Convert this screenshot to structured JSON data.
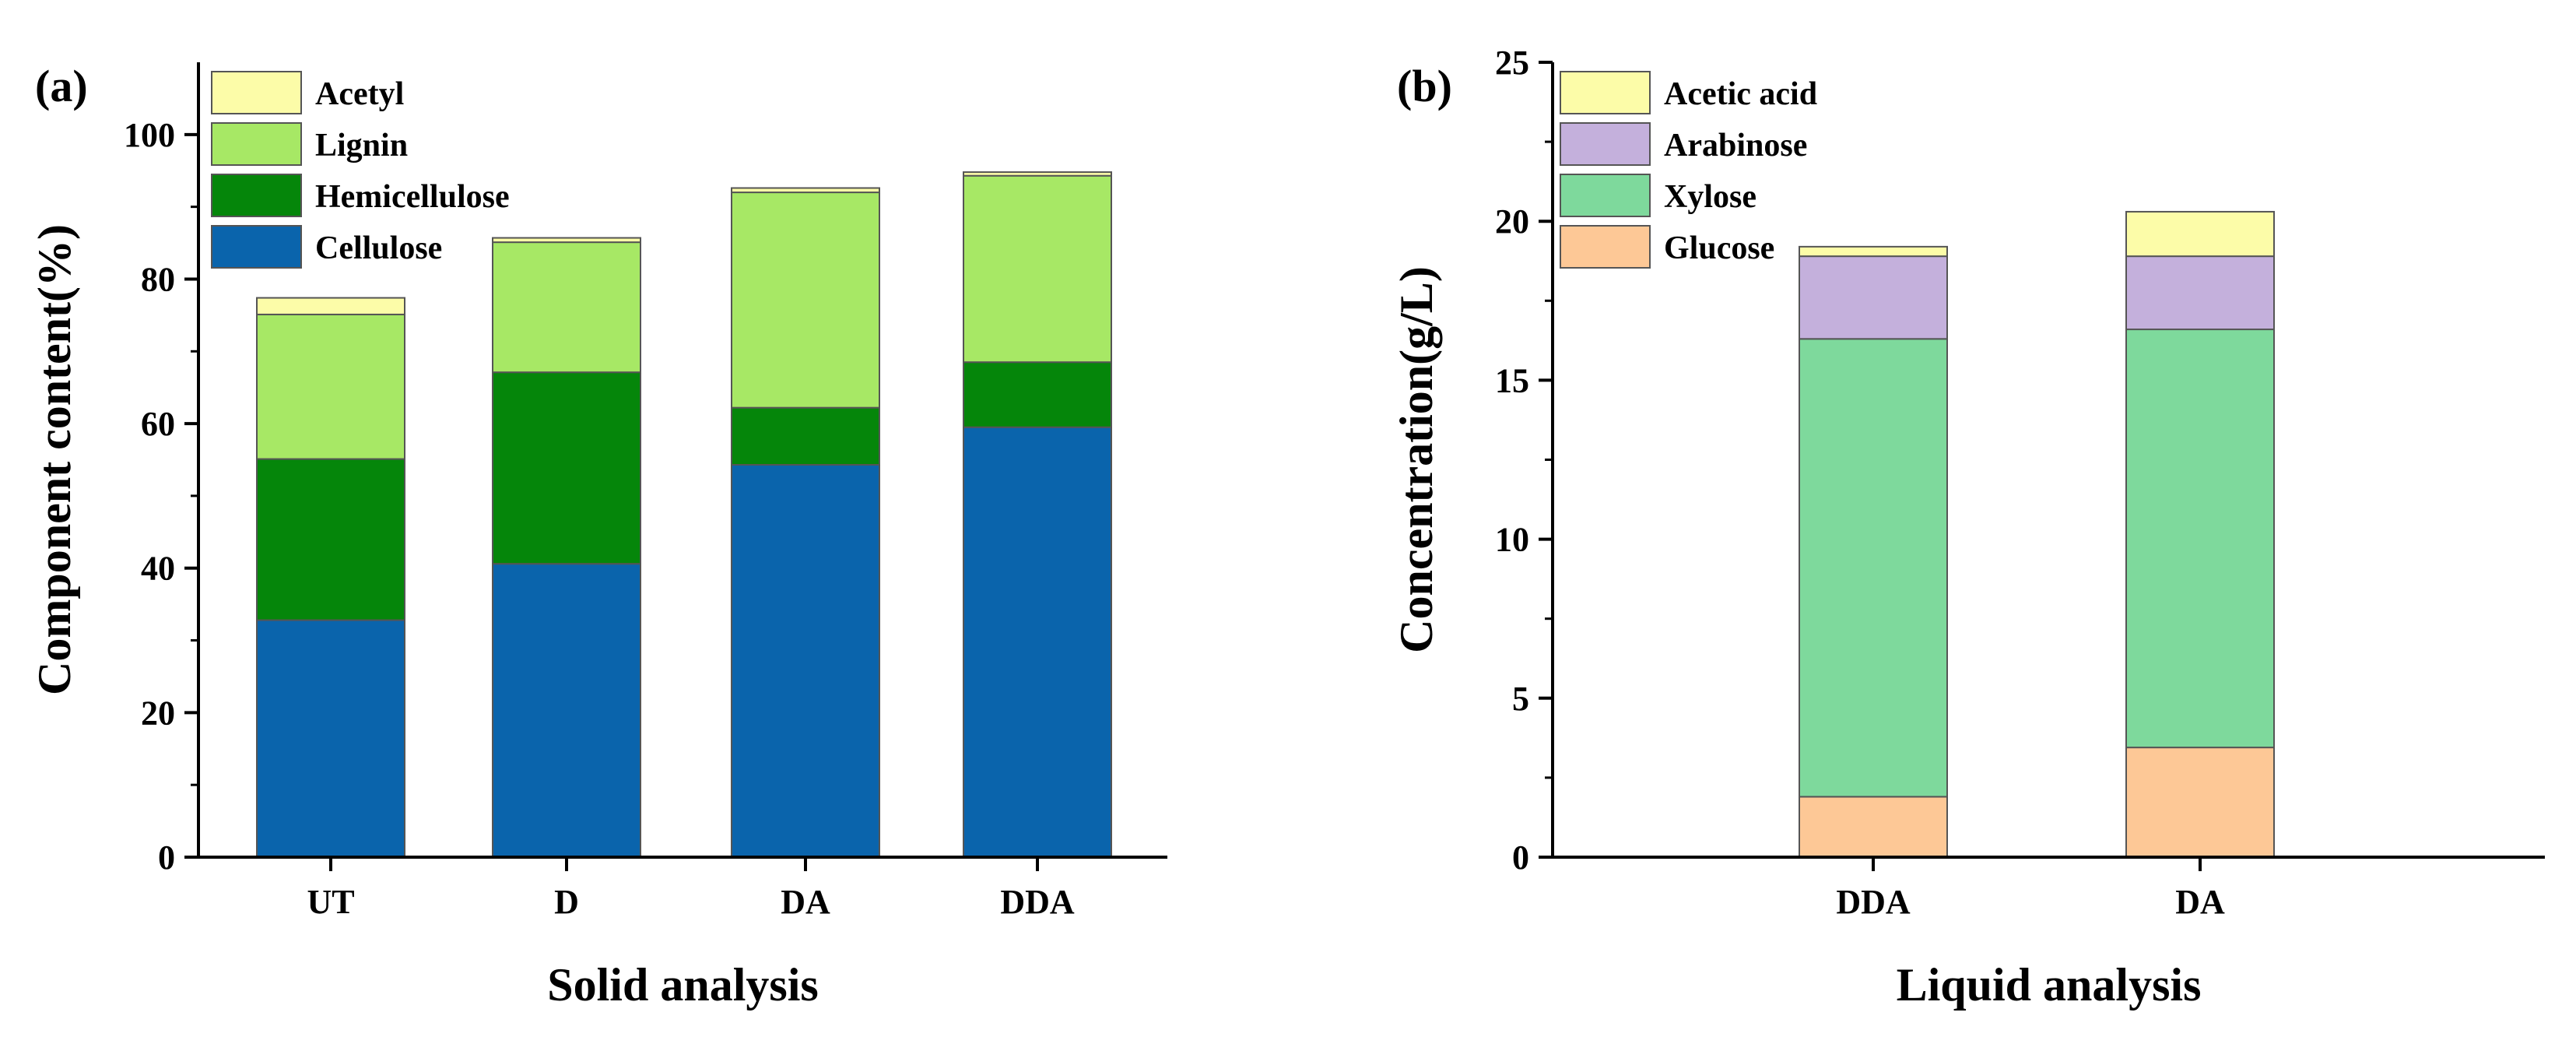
{
  "chart_data": [
    {
      "panel": "(a)",
      "type": "bar",
      "stacked": true,
      "categories": [
        "UT",
        "D",
        "DA",
        "DDA"
      ],
      "series": [
        {
          "name": "Cellulose",
          "color": "#0a64ac",
          "values": [
            32.8,
            40.6,
            54.3,
            59.5
          ]
        },
        {
          "name": "Hemicellulose",
          "color": "#05860a",
          "values": [
            22.3,
            26.5,
            7.9,
            9.0
          ]
        },
        {
          "name": "Lignin",
          "color": "#a7e865",
          "values": [
            20.0,
            18.0,
            29.8,
            25.8
          ]
        },
        {
          "name": "Acetyl",
          "color": "#fcfca8",
          "values": [
            2.3,
            0.6,
            0.6,
            0.5
          ]
        }
      ],
      "xlabel": "Solid analysis",
      "ylabel": "Component content(%)",
      "ylim": [
        0,
        110
      ],
      "yticks": [
        0,
        20,
        40,
        60,
        80,
        100
      ],
      "legend_position": "top-left"
    },
    {
      "panel": "(b)",
      "type": "bar",
      "stacked": true,
      "categories": [
        "DDA",
        "DA"
      ],
      "series": [
        {
          "name": "Glucose",
          "color": "#fdc896",
          "values": [
            1.9,
            3.45
          ]
        },
        {
          "name": "Xylose",
          "color": "#7ed99c",
          "values": [
            14.4,
            13.15
          ]
        },
        {
          "name": "Arabinose",
          "color": "#c4b0dc",
          "values": [
            2.6,
            2.3
          ]
        },
        {
          "name": "Acetic acid",
          "color": "#fcfca8",
          "values": [
            0.3,
            1.4
          ]
        }
      ],
      "xlabel": "Liquid analysis",
      "ylabel": "Concentration(g/L)",
      "ylim": [
        0,
        25
      ],
      "yticks": [
        0,
        5,
        10,
        15,
        20,
        25
      ],
      "legend_position": "top-left"
    }
  ]
}
